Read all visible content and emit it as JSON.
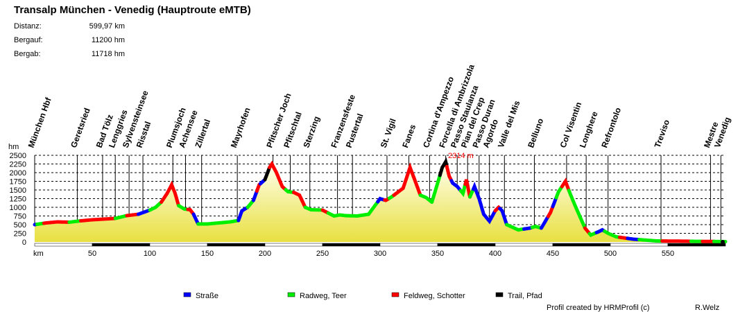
{
  "header": {
    "title": "Transalp München - Venedig (Hauptroute eMTB)",
    "stats": [
      {
        "label": "Distanz:",
        "value": "599,97 km"
      },
      {
        "label": "Bergauf:",
        "value": "11200 hm"
      },
      {
        "label": "Bergab:",
        "value": "11718 hm"
      }
    ]
  },
  "footer": {
    "credit": "Profil created by HRMProfil (c)",
    "author": "R.Welz"
  },
  "chart_data": {
    "type": "area",
    "ylabel": "hm",
    "xlabel": "km",
    "xlim": [
      0,
      600
    ],
    "ylim": [
      0,
      2500
    ],
    "yticks": [
      0,
      250,
      500,
      750,
      1000,
      1250,
      1500,
      1750,
      2000,
      2250,
      2500
    ],
    "xticks": [
      50,
      100,
      150,
      200,
      250,
      300,
      350,
      400,
      450,
      500,
      550
    ],
    "grid": "horizontal dashed",
    "max_annotation": {
      "km": 357,
      "label": "2314 m"
    },
    "legend_position": "bottom",
    "legend": [
      {
        "key": "strasse",
        "label": "Straße",
        "color": "#0000ff"
      },
      {
        "key": "radweg",
        "label": "Radweg, Teer",
        "color": "#00ee00"
      },
      {
        "key": "feldweg",
        "label": "Feldweg, Schotter",
        "color": "#ff0000"
      },
      {
        "key": "trail",
        "label": "Trail, Pfad",
        "color": "#000000"
      }
    ],
    "profile": [
      [
        0,
        500
      ],
      [
        10,
        550
      ],
      [
        20,
        580
      ],
      [
        30,
        570
      ],
      [
        40,
        610
      ],
      [
        50,
        640
      ],
      [
        60,
        660
      ],
      [
        70,
        680
      ],
      [
        80,
        760
      ],
      [
        90,
        800
      ],
      [
        100,
        920
      ],
      [
        105,
        1000
      ],
      [
        110,
        1150
      ],
      [
        115,
        1400
      ],
      [
        119,
        1650
      ],
      [
        122,
        1400
      ],
      [
        125,
        1050
      ],
      [
        130,
        950
      ],
      [
        135,
        930
      ],
      [
        138,
        800
      ],
      [
        142,
        520
      ],
      [
        150,
        520
      ],
      [
        160,
        550
      ],
      [
        170,
        580
      ],
      [
        177,
        620
      ],
      [
        180,
        900
      ],
      [
        185,
        1000
      ],
      [
        190,
        1200
      ],
      [
        195,
        1650
      ],
      [
        200,
        1800
      ],
      [
        204,
        2150
      ],
      [
        206,
        2250
      ],
      [
        210,
        2000
      ],
      [
        215,
        1600
      ],
      [
        220,
        1450
      ],
      [
        225,
        1430
      ],
      [
        230,
        1350
      ],
      [
        235,
        1000
      ],
      [
        240,
        930
      ],
      [
        250,
        920
      ],
      [
        260,
        750
      ],
      [
        265,
        780
      ],
      [
        270,
        760
      ],
      [
        280,
        750
      ],
      [
        290,
        800
      ],
      [
        300,
        1250
      ],
      [
        305,
        1200
      ],
      [
        310,
        1300
      ],
      [
        320,
        1550
      ],
      [
        326,
        2150
      ],
      [
        330,
        1800
      ],
      [
        335,
        1350
      ],
      [
        340,
        1280
      ],
      [
        345,
        1150
      ],
      [
        350,
        1700
      ],
      [
        354,
        2150
      ],
      [
        357,
        2314
      ],
      [
        360,
        1900
      ],
      [
        363,
        1700
      ],
      [
        367,
        1600
      ],
      [
        372,
        1400
      ],
      [
        375,
        1800
      ],
      [
        378,
        1300
      ],
      [
        382,
        1600
      ],
      [
        386,
        1250
      ],
      [
        390,
        800
      ],
      [
        395,
        600
      ],
      [
        400,
        900
      ],
      [
        403,
        1000
      ],
      [
        406,
        900
      ],
      [
        410,
        500
      ],
      [
        420,
        350
      ],
      [
        430,
        400
      ],
      [
        435,
        450
      ],
      [
        440,
        400
      ],
      [
        448,
        850
      ],
      [
        455,
        1450
      ],
      [
        461,
        1750
      ],
      [
        465,
        1400
      ],
      [
        470,
        1000
      ],
      [
        478,
        400
      ],
      [
        483,
        200
      ],
      [
        490,
        300
      ],
      [
        493,
        350
      ],
      [
        498,
        250
      ],
      [
        505,
        150
      ],
      [
        520,
        80
      ],
      [
        540,
        30
      ],
      [
        600,
        10
      ]
    ],
    "surface": [
      [
        0,
        "strasse"
      ],
      [
        2,
        "radweg"
      ],
      [
        8,
        "feldweg"
      ],
      [
        30,
        "radweg"
      ],
      [
        40,
        "feldweg"
      ],
      [
        70,
        "radweg"
      ],
      [
        80,
        "feldweg"
      ],
      [
        90,
        "strasse"
      ],
      [
        100,
        "radweg"
      ],
      [
        110,
        "feldweg"
      ],
      [
        125,
        "radweg"
      ],
      [
        133,
        "feldweg"
      ],
      [
        138,
        "strasse"
      ],
      [
        142,
        "radweg"
      ],
      [
        177,
        "strasse"
      ],
      [
        185,
        "radweg"
      ],
      [
        190,
        "strasse"
      ],
      [
        193,
        "feldweg"
      ],
      [
        196,
        "strasse"
      ],
      [
        200,
        "trail"
      ],
      [
        204,
        "feldweg"
      ],
      [
        218,
        "radweg"
      ],
      [
        225,
        "feldweg"
      ],
      [
        235,
        "radweg"
      ],
      [
        250,
        "feldweg"
      ],
      [
        255,
        "radweg"
      ],
      [
        298,
        "strasse"
      ],
      [
        304,
        "feldweg"
      ],
      [
        308,
        "radweg"
      ],
      [
        312,
        "feldweg"
      ],
      [
        335,
        "radweg"
      ],
      [
        345,
        "radweg"
      ],
      [
        352,
        "trail"
      ],
      [
        358,
        "feldweg"
      ],
      [
        362,
        "strasse"
      ],
      [
        370,
        "radweg"
      ],
      [
        374,
        "feldweg"
      ],
      [
        378,
        "radweg"
      ],
      [
        381,
        "strasse"
      ],
      [
        400,
        "feldweg"
      ],
      [
        404,
        "strasse"
      ],
      [
        410,
        "radweg"
      ],
      [
        425,
        "strasse"
      ],
      [
        432,
        "radweg"
      ],
      [
        440,
        "strasse"
      ],
      [
        446,
        "feldweg"
      ],
      [
        450,
        "strasse"
      ],
      [
        453,
        "radweg"
      ],
      [
        458,
        "feldweg"
      ],
      [
        464,
        "radweg"
      ],
      [
        478,
        "feldweg"
      ],
      [
        482,
        "radweg"
      ],
      [
        488,
        "strasse"
      ],
      [
        495,
        "radweg"
      ],
      [
        508,
        "feldweg"
      ],
      [
        515,
        "strasse"
      ],
      [
        525,
        "radweg"
      ],
      [
        545,
        "feldweg"
      ],
      [
        570,
        "radweg"
      ],
      [
        580,
        "feldweg"
      ],
      [
        590,
        "radweg"
      ]
    ],
    "waypoints": [
      {
        "km": 0,
        "name": "München Hbf"
      },
      {
        "km": 37,
        "name": "Geretsried"
      },
      {
        "km": 59,
        "name": "Bad Tölz"
      },
      {
        "km": 70,
        "name": "Lenggries"
      },
      {
        "km": 82,
        "name": "Sylvensteinsee"
      },
      {
        "km": 94,
        "name": "Risstal"
      },
      {
        "km": 120,
        "name": "Plumsjoch"
      },
      {
        "km": 131,
        "name": "Achensee"
      },
      {
        "km": 145,
        "name": "Zillertal"
      },
      {
        "km": 176,
        "name": "Mayrhofen"
      },
      {
        "km": 207,
        "name": "Pfitscher Joch"
      },
      {
        "km": 222,
        "name": "Pfitschtal"
      },
      {
        "km": 239,
        "name": "Sterzing"
      },
      {
        "km": 263,
        "name": "Franzensfeste"
      },
      {
        "km": 276,
        "name": "Pustertal"
      },
      {
        "km": 306,
        "name": "St. Vigil"
      },
      {
        "km": 325,
        "name": "Fanes"
      },
      {
        "km": 343,
        "name": "Cortina d'Ampezzo"
      },
      {
        "km": 357,
        "name": "Forcella di Ambrizzola"
      },
      {
        "km": 367,
        "name": "Passo Staulanza"
      },
      {
        "km": 376,
        "name": "Pian del Crep"
      },
      {
        "km": 386,
        "name": "Passo Duran"
      },
      {
        "km": 395,
        "name": "Agordo"
      },
      {
        "km": 408,
        "name": "Valle del Mis"
      },
      {
        "km": 434,
        "name": "Belluno"
      },
      {
        "km": 462,
        "name": "Col Visentin"
      },
      {
        "km": 479,
        "name": "Longhere"
      },
      {
        "km": 498,
        "name": "Refrontolo"
      },
      {
        "km": 544,
        "name": "Treviso"
      },
      {
        "km": 587,
        "name": "Mestre"
      },
      {
        "km": 596,
        "name": "Venedig"
      }
    ]
  }
}
